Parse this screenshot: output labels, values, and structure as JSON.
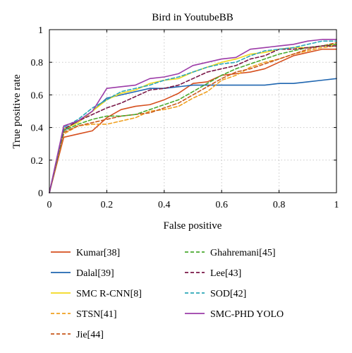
{
  "chart_data": {
    "type": "line",
    "title": "Bird in YoutubeBB",
    "xlabel": "False positive",
    "ylabel": "True positive rate",
    "xlim": [
      0,
      1
    ],
    "ylim": [
      0,
      1
    ],
    "xticks": [
      "0",
      "0.2",
      "0.4",
      "0.6",
      "0.8",
      "1"
    ],
    "yticks": [
      "0",
      "0.2",
      "0.4",
      "0.6",
      "0.8",
      "1"
    ],
    "grid": true,
    "legend_position": "bottom",
    "series": [
      {
        "name": "Kumar[38]",
        "color": "#D64F1E",
        "dash": "solid",
        "points": [
          [
            0,
            0
          ],
          [
            0.05,
            0.34
          ],
          [
            0.1,
            0.36
          ],
          [
            0.15,
            0.38
          ],
          [
            0.2,
            0.46
          ],
          [
            0.25,
            0.51
          ],
          [
            0.3,
            0.53
          ],
          [
            0.35,
            0.54
          ],
          [
            0.4,
            0.57
          ],
          [
            0.45,
            0.61
          ],
          [
            0.5,
            0.67
          ],
          [
            0.55,
            0.68
          ],
          [
            0.6,
            0.72
          ],
          [
            0.65,
            0.73
          ],
          [
            0.7,
            0.74
          ],
          [
            0.75,
            0.76
          ],
          [
            0.8,
            0.8
          ],
          [
            0.85,
            0.84
          ],
          [
            0.9,
            0.86
          ],
          [
            0.95,
            0.88
          ],
          [
            1,
            0.88
          ]
        ]
      },
      {
        "name": "Dalal[39]",
        "color": "#1F66B0",
        "dash": "solid",
        "points": [
          [
            0,
            0
          ],
          [
            0.05,
            0.38
          ],
          [
            0.1,
            0.44
          ],
          [
            0.15,
            0.5
          ],
          [
            0.2,
            0.58
          ],
          [
            0.25,
            0.6
          ],
          [
            0.3,
            0.62
          ],
          [
            0.35,
            0.64
          ],
          [
            0.4,
            0.64
          ],
          [
            0.45,
            0.65
          ],
          [
            0.5,
            0.66
          ],
          [
            0.55,
            0.66
          ],
          [
            0.6,
            0.66
          ],
          [
            0.65,
            0.66
          ],
          [
            0.7,
            0.66
          ],
          [
            0.75,
            0.66
          ],
          [
            0.8,
            0.67
          ],
          [
            0.85,
            0.67
          ],
          [
            0.9,
            0.68
          ],
          [
            0.95,
            0.69
          ],
          [
            1,
            0.7
          ]
        ]
      },
      {
        "name": "SMC R-CNN[8]",
        "color": "#F2D81C",
        "dash": "solid",
        "points": [
          [
            0,
            0
          ],
          [
            0.05,
            0.39
          ],
          [
            0.1,
            0.43
          ],
          [
            0.15,
            0.5
          ],
          [
            0.2,
            0.57
          ],
          [
            0.25,
            0.61
          ],
          [
            0.3,
            0.63
          ],
          [
            0.35,
            0.67
          ],
          [
            0.4,
            0.69
          ],
          [
            0.45,
            0.7
          ],
          [
            0.5,
            0.74
          ],
          [
            0.55,
            0.77
          ],
          [
            0.6,
            0.8
          ],
          [
            0.65,
            0.82
          ],
          [
            0.7,
            0.85
          ],
          [
            0.75,
            0.86
          ],
          [
            0.8,
            0.88
          ],
          [
            0.85,
            0.89
          ],
          [
            0.9,
            0.89
          ],
          [
            0.95,
            0.9
          ],
          [
            1,
            0.91
          ]
        ]
      },
      {
        "name": "STSN[41]",
        "color": "#F0A020",
        "dash": "dashed",
        "points": [
          [
            0,
            0
          ],
          [
            0.05,
            0.36
          ],
          [
            0.1,
            0.41
          ],
          [
            0.15,
            0.42
          ],
          [
            0.2,
            0.42
          ],
          [
            0.25,
            0.44
          ],
          [
            0.3,
            0.46
          ],
          [
            0.35,
            0.5
          ],
          [
            0.4,
            0.51
          ],
          [
            0.45,
            0.53
          ],
          [
            0.5,
            0.58
          ],
          [
            0.55,
            0.62
          ],
          [
            0.6,
            0.69
          ],
          [
            0.65,
            0.72
          ],
          [
            0.7,
            0.77
          ],
          [
            0.75,
            0.8
          ],
          [
            0.8,
            0.82
          ],
          [
            0.85,
            0.85
          ],
          [
            0.9,
            0.87
          ],
          [
            0.95,
            0.89
          ],
          [
            1,
            0.9
          ]
        ]
      },
      {
        "name": "Jie[44]",
        "color": "#C8581C",
        "dash": "dashed",
        "points": [
          [
            0,
            0
          ],
          [
            0.05,
            0.37
          ],
          [
            0.1,
            0.41
          ],
          [
            0.15,
            0.43
          ],
          [
            0.2,
            0.45
          ],
          [
            0.25,
            0.47
          ],
          [
            0.3,
            0.48
          ],
          [
            0.35,
            0.49
          ],
          [
            0.4,
            0.52
          ],
          [
            0.45,
            0.55
          ],
          [
            0.5,
            0.6
          ],
          [
            0.55,
            0.65
          ],
          [
            0.6,
            0.7
          ],
          [
            0.65,
            0.74
          ],
          [
            0.7,
            0.76
          ],
          [
            0.75,
            0.79
          ],
          [
            0.8,
            0.82
          ],
          [
            0.85,
            0.85
          ],
          [
            0.9,
            0.88
          ],
          [
            0.95,
            0.9
          ],
          [
            1,
            0.92
          ]
        ]
      },
      {
        "name": "Ghahremani[45]",
        "color": "#4AAA2E",
        "dash": "dashed",
        "points": [
          [
            0,
            0
          ],
          [
            0.05,
            0.38
          ],
          [
            0.1,
            0.42
          ],
          [
            0.15,
            0.45
          ],
          [
            0.2,
            0.47
          ],
          [
            0.25,
            0.47
          ],
          [
            0.3,
            0.48
          ],
          [
            0.35,
            0.51
          ],
          [
            0.4,
            0.54
          ],
          [
            0.45,
            0.57
          ],
          [
            0.5,
            0.62
          ],
          [
            0.55,
            0.67
          ],
          [
            0.6,
            0.72
          ],
          [
            0.65,
            0.76
          ],
          [
            0.7,
            0.79
          ],
          [
            0.75,
            0.82
          ],
          [
            0.8,
            0.85
          ],
          [
            0.85,
            0.87
          ],
          [
            0.9,
            0.89
          ],
          [
            0.95,
            0.9
          ],
          [
            1,
            0.91
          ]
        ]
      },
      {
        "name": "Lee[43]",
        "color": "#7A1848",
        "dash": "dashed",
        "points": [
          [
            0,
            0
          ],
          [
            0.05,
            0.39
          ],
          [
            0.1,
            0.44
          ],
          [
            0.15,
            0.48
          ],
          [
            0.2,
            0.52
          ],
          [
            0.25,
            0.55
          ],
          [
            0.3,
            0.59
          ],
          [
            0.35,
            0.63
          ],
          [
            0.4,
            0.64
          ],
          [
            0.45,
            0.66
          ],
          [
            0.5,
            0.7
          ],
          [
            0.55,
            0.74
          ],
          [
            0.6,
            0.76
          ],
          [
            0.65,
            0.78
          ],
          [
            0.7,
            0.82
          ],
          [
            0.75,
            0.84
          ],
          [
            0.8,
            0.88
          ],
          [
            0.85,
            0.88
          ],
          [
            0.9,
            0.89
          ],
          [
            0.95,
            0.9
          ],
          [
            1,
            0.9
          ]
        ]
      },
      {
        "name": "SOD[42]",
        "color": "#2BA8B8",
        "dash": "dashed",
        "points": [
          [
            0,
            0
          ],
          [
            0.05,
            0.4
          ],
          [
            0.1,
            0.45
          ],
          [
            0.15,
            0.52
          ],
          [
            0.2,
            0.57
          ],
          [
            0.25,
            0.62
          ],
          [
            0.3,
            0.64
          ],
          [
            0.35,
            0.66
          ],
          [
            0.4,
            0.69
          ],
          [
            0.45,
            0.71
          ],
          [
            0.5,
            0.74
          ],
          [
            0.55,
            0.77
          ],
          [
            0.6,
            0.79
          ],
          [
            0.65,
            0.8
          ],
          [
            0.7,
            0.84
          ],
          [
            0.75,
            0.87
          ],
          [
            0.8,
            0.88
          ],
          [
            0.85,
            0.89
          ],
          [
            0.9,
            0.91
          ],
          [
            0.95,
            0.93
          ],
          [
            1,
            0.93
          ]
        ]
      },
      {
        "name": "SMC-PHD YOLO",
        "color": "#9C3BA8",
        "dash": "solid",
        "points": [
          [
            0,
            0
          ],
          [
            0.05,
            0.41
          ],
          [
            0.1,
            0.44
          ],
          [
            0.15,
            0.5
          ],
          [
            0.2,
            0.64
          ],
          [
            0.25,
            0.65
          ],
          [
            0.3,
            0.66
          ],
          [
            0.35,
            0.7
          ],
          [
            0.4,
            0.71
          ],
          [
            0.45,
            0.73
          ],
          [
            0.5,
            0.78
          ],
          [
            0.55,
            0.8
          ],
          [
            0.6,
            0.82
          ],
          [
            0.65,
            0.83
          ],
          [
            0.7,
            0.88
          ],
          [
            0.75,
            0.89
          ],
          [
            0.8,
            0.9
          ],
          [
            0.85,
            0.91
          ],
          [
            0.9,
            0.93
          ],
          [
            0.95,
            0.94
          ],
          [
            1,
            0.94
          ]
        ]
      }
    ]
  }
}
